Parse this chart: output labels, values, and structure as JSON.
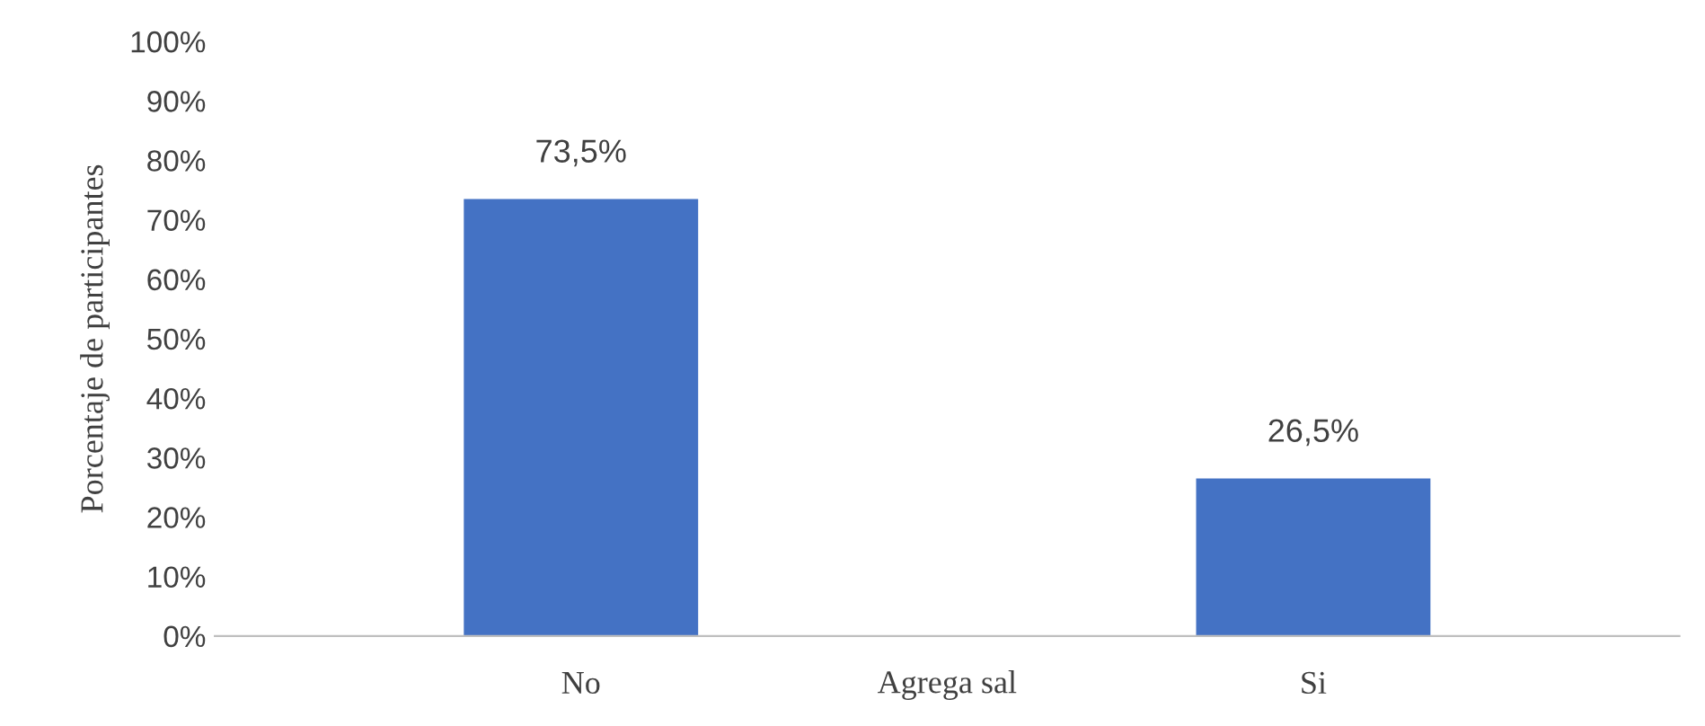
{
  "chart_data": {
    "type": "bar",
    "xlabel": "Agrega sal",
    "ylabel": "Porcentaje de participantes",
    "categories": [
      "No",
      "Si"
    ],
    "values": [
      73.5,
      26.5
    ],
    "value_labels": [
      "73,5%",
      "26,5%"
    ],
    "color": "#4472c4",
    "ylim": [
      0,
      100
    ],
    "yticks": [
      {
        "value": 0,
        "label": "0%"
      },
      {
        "value": 10,
        "label": "10%"
      },
      {
        "value": 20,
        "label": "20%"
      },
      {
        "value": 30,
        "label": "30%"
      },
      {
        "value": 40,
        "label": "40%"
      },
      {
        "value": 50,
        "label": "50%"
      },
      {
        "value": 60,
        "label": "60%"
      },
      {
        "value": 70,
        "label": "70%"
      },
      {
        "value": 80,
        "label": "80%"
      },
      {
        "value": 90,
        "label": "90%"
      },
      {
        "value": 100,
        "label": "100%"
      }
    ],
    "grid": false,
    "legend": false
  }
}
